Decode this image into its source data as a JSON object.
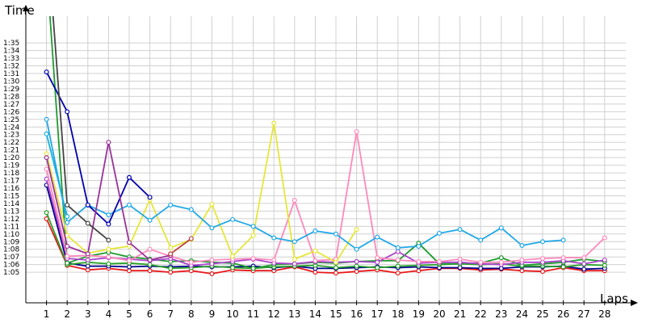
{
  "chart_data": {
    "type": "line",
    "title": "",
    "ylabel": "Time",
    "xlabel": "Laps",
    "x": [
      1,
      2,
      3,
      4,
      5,
      6,
      7,
      8,
      9,
      10,
      11,
      12,
      13,
      14,
      15,
      16,
      17,
      18,
      19,
      20,
      21,
      22,
      23,
      24,
      25,
      26,
      27,
      28
    ],
    "xlim": [
      0,
      28.6
    ],
    "ylim": [
      61,
      98.5
    ],
    "grid": true,
    "yticks": [
      {
        "v": 65,
        "label": "1:05"
      },
      {
        "v": 66,
        "label": "1:06"
      },
      {
        "v": 67,
        "label": "1:07"
      },
      {
        "v": 68,
        "label": "1:08"
      },
      {
        "v": 69,
        "label": "1:09"
      },
      {
        "v": 70,
        "label": "1:10"
      },
      {
        "v": 71,
        "label": "1:11"
      },
      {
        "v": 72,
        "label": "1:12"
      },
      {
        "v": 73,
        "label": "1:13"
      },
      {
        "v": 74,
        "label": "1:14"
      },
      {
        "v": 75,
        "label": "1:15"
      },
      {
        "v": 76,
        "label": "1:16"
      },
      {
        "v": 77,
        "label": "1:17"
      },
      {
        "v": 78,
        "label": "1:18"
      },
      {
        "v": 79,
        "label": "1:19"
      },
      {
        "v": 80,
        "label": "1:20"
      },
      {
        "v": 81,
        "label": "1:21"
      },
      {
        "v": 82,
        "label": "1:22"
      },
      {
        "v": 83,
        "label": "1:23"
      },
      {
        "v": 84,
        "label": "1:24"
      },
      {
        "v": 85,
        "label": "1:25"
      },
      {
        "v": 86,
        "label": "1:26"
      },
      {
        "v": 87,
        "label": "1:27"
      },
      {
        "v": 88,
        "label": "1:28"
      },
      {
        "v": 89,
        "label": "1:29"
      },
      {
        "v": 90,
        "label": "1:30"
      },
      {
        "v": 91,
        "label": "1:31"
      },
      {
        "v": 92,
        "label": "1:32"
      },
      {
        "v": 93,
        "label": "1:33"
      },
      {
        "v": 94,
        "label": "1:34"
      },
      {
        "v": 95,
        "label": "1:35"
      }
    ],
    "series": [
      {
        "color": "#e8191b",
        "values": [
          72,
          65.9,
          65.3,
          65.5,
          65.2,
          65.2,
          65,
          65.2,
          64.8,
          65.3,
          65.2,
          65.2,
          65.7,
          65,
          64.9,
          65.1,
          65.3,
          64.9,
          65.2,
          65.5,
          65.5,
          65.3,
          65.4,
          65.2,
          65.1,
          65.6,
          65.2,
          65.2
        ]
      },
      {
        "color": "#00008b",
        "values": [
          76.4,
          66.2,
          65.8,
          65.8,
          65.7,
          65.8,
          65.7,
          65.8,
          65.7,
          65.7,
          65.8,
          65.6,
          65.8,
          65.5,
          65.5,
          65.6,
          65.7,
          65.6,
          65.7,
          65.6,
          65.6,
          65.5,
          65.5,
          65.7,
          65.7,
          65.8,
          65.4,
          65.5
        ]
      },
      {
        "color": "#2aa02a",
        "values": [
          72.8,
          66,
          66.3,
          66.1,
          66.2,
          66,
          65.5,
          65.6,
          65.8,
          65.6,
          65.5,
          65.7,
          65.8,
          65.9,
          65.6,
          65.8,
          65.6,
          65.8,
          65.9,
          66,
          66.1,
          66,
          66.1,
          65.8,
          65.8,
          65.7,
          66,
          65.9
        ]
      },
      {
        "color": "#1f9b2f",
        "values": [
          105,
          66.2,
          67.1,
          67.6,
          67,
          66.7,
          66.4,
          66.5,
          66.3,
          66.2,
          65.5,
          66,
          66.1,
          66.3,
          66.2,
          66.4,
          66.5,
          66.5,
          68.8,
          66.1,
          66.1,
          66.2,
          66.9,
          65.9,
          66.1,
          66.3,
          66.7,
          66.4
        ]
      },
      {
        "color": "#aa44cc",
        "values": [
          77.2,
          66.8,
          66.6,
          66.9,
          66.7,
          66.5,
          66.8,
          65.9,
          66.1,
          66.4,
          66.7,
          66.2,
          66.1,
          66.4,
          66.3,
          66.4,
          66.3,
          67.7,
          66.2,
          66.3,
          66.3,
          66.1,
          66,
          66.3,
          66.3,
          66.5,
          66.1,
          66.6
        ]
      },
      {
        "color": "#ff88bb",
        "values": [
          78.5,
          67.1,
          67.2,
          67,
          66.5,
          68,
          67.1,
          66.3,
          66.6,
          66.7,
          66.8,
          66.6,
          74.4,
          66.5,
          66.7,
          83.4,
          66.9,
          66.6,
          66.4,
          66.4,
          66.7,
          66.3,
          66.3,
          66.6,
          66.8,
          66.9,
          66.9,
          69.5
        ]
      },
      {
        "color": "#e6e639",
        "values": [
          80.5,
          69.8,
          67.5,
          68,
          68.4,
          74.5,
          68.2,
          69.3,
          73.9,
          67.1,
          69.8,
          84.5,
          66.7,
          67.8,
          66.3,
          70.6,
          null,
          null,
          null,
          null,
          null,
          null,
          null,
          null,
          null,
          null,
          null,
          null
        ]
      },
      {
        "color": "#22a8e6",
        "values": [
          85,
          71.5,
          73.8,
          72.5,
          73.8,
          71.8,
          73.8,
          73.2,
          70.8,
          71.9,
          71.0,
          69.5,
          69.0,
          70.4,
          70.0,
          68.0,
          69.6,
          68.2,
          68.4,
          70.1,
          70.6,
          69.2,
          70.8,
          68.5,
          69.0,
          69.2,
          null,
          null
        ]
      },
      {
        "color": "#1ab0e0",
        "values": [
          83.1,
          72.3,
          null,
          null,
          null,
          null,
          null,
          null,
          null,
          null,
          null,
          null,
          null,
          null,
          null,
          null,
          null,
          null,
          null,
          null,
          null,
          null,
          null,
          null,
          null,
          null,
          null,
          null
        ]
      },
      {
        "color": "#0000aa",
        "values": [
          91.2,
          86,
          73.8,
          71.3,
          77.4,
          74.8,
          null,
          null,
          null,
          null,
          null,
          null,
          null,
          null,
          null,
          null,
          null,
          null,
          null,
          null,
          null,
          null,
          null,
          null,
          null,
          null,
          null,
          null
        ]
      },
      {
        "color": "#993399",
        "values": [
          80,
          68.4,
          67.4,
          82,
          68.9,
          66.6,
          67.2,
          null,
          null,
          null,
          null,
          null,
          null,
          null,
          null,
          null,
          null,
          null,
          null,
          null,
          null,
          null,
          null,
          null,
          null,
          null,
          null,
          null
        ]
      },
      {
        "color": "#444444",
        "values": [
          110,
          73.8,
          71.4,
          69.2,
          null,
          null,
          null,
          null,
          null,
          null,
          null,
          null,
          null,
          null,
          null,
          null,
          null,
          null,
          null,
          null,
          null,
          null,
          null,
          null,
          null,
          null,
          null,
          null
        ]
      },
      {
        "color": "#bb4444",
        "values": [
          null,
          null,
          null,
          null,
          null,
          null,
          67.4,
          69.4,
          null,
          null,
          null,
          null,
          null,
          null,
          null,
          null,
          null,
          null,
          null,
          null,
          null,
          null,
          null,
          null,
          null,
          null,
          null,
          null
        ]
      }
    ]
  }
}
